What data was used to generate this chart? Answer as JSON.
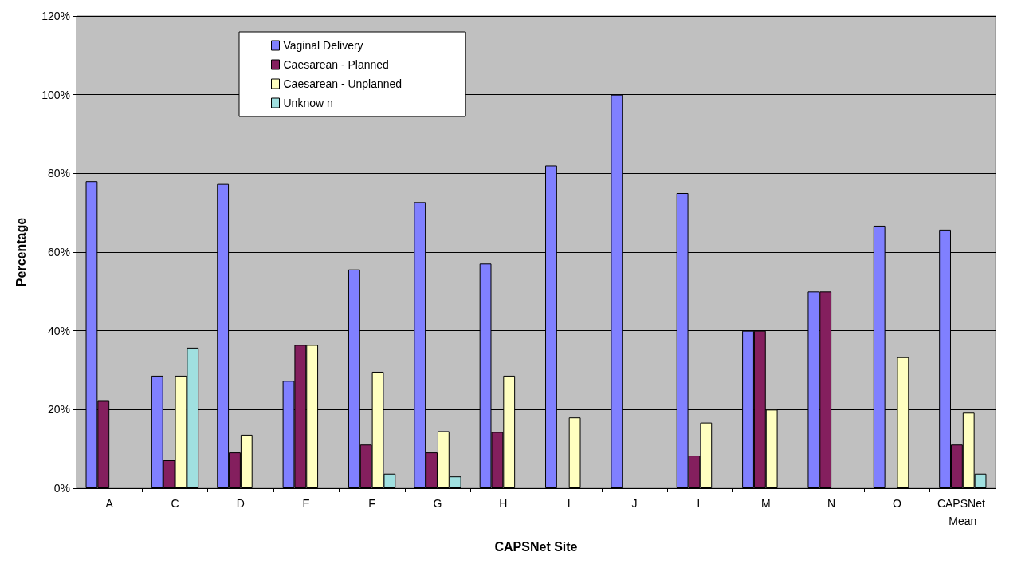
{
  "chart_data": {
    "type": "bar",
    "xlabel": "CAPSNet Site",
    "ylabel": "Percentage",
    "categories": [
      "A",
      "C",
      "D",
      "E",
      "F",
      "G",
      "H",
      "I",
      "J",
      "L",
      "M",
      "N",
      "O",
      "CAPSNet Mean"
    ],
    "series": [
      {
        "name": "Vaginal Delivery",
        "color": "#8080ff",
        "values": [
          78,
          28.6,
          77.3,
          27.3,
          55.6,
          72.7,
          57.1,
          82,
          100,
          75,
          40,
          50,
          66.7,
          65.7
        ]
      },
      {
        "name": "Caesarean - Planned",
        "color": "#841f5e",
        "values": [
          22.2,
          7.1,
          9.1,
          36.4,
          11.1,
          9.1,
          14.3,
          null,
          null,
          8.3,
          40,
          50,
          null,
          11.1
        ]
      },
      {
        "name": "Caesarean - Unplanned",
        "color": "#ffffc0",
        "values": [
          null,
          28.6,
          13.6,
          36.4,
          29.6,
          14.5,
          28.6,
          18,
          null,
          16.7,
          20,
          null,
          33.3,
          19.2
        ]
      },
      {
        "name": "Unknow n",
        "color": "#a0e0e0",
        "values": [
          null,
          35.7,
          null,
          null,
          3.7,
          3,
          null,
          null,
          null,
          null,
          null,
          null,
          null,
          3.7
        ]
      }
    ],
    "ylim": [
      0,
      120
    ],
    "yticks": [
      {
        "value": 0,
        "label": "0%"
      },
      {
        "value": 20,
        "label": "20%"
      },
      {
        "value": 40,
        "label": "40%"
      },
      {
        "value": 60,
        "label": "60%"
      },
      {
        "value": 80,
        "label": "80%"
      },
      {
        "value": 100,
        "label": "100%"
      },
      {
        "value": 120,
        "label": "120%"
      }
    ],
    "grid": "y",
    "legend": "top"
  }
}
